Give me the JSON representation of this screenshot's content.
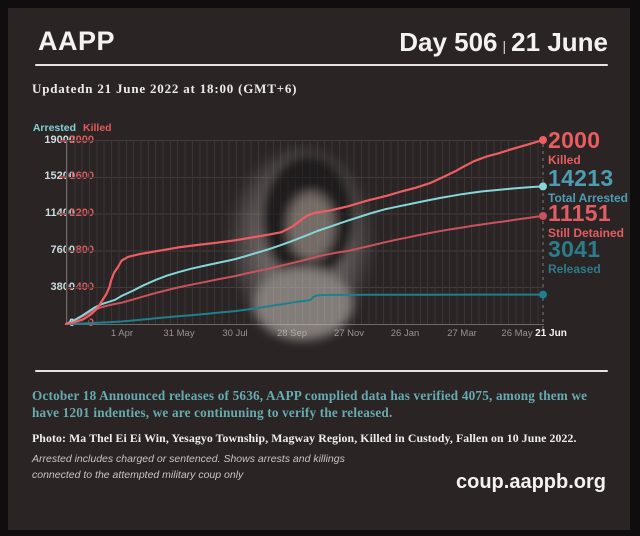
{
  "header": {
    "brand": "AAPP",
    "day_label": "Day 506",
    "divider": "|",
    "date_label": "21 June"
  },
  "updated_line": "Updatedn 21 June 2022 at 18:00 (GMT+6)",
  "chart_data": {
    "type": "line",
    "grid": true,
    "y_left": {
      "title": "Arrested",
      "min": 0,
      "max": 19000,
      "tick_labels": [
        "19000",
        "15200",
        "11400",
        "7600",
        "3800",
        "0"
      ]
    },
    "y_right": {
      "title": "Killed",
      "min": 0,
      "max": 2000,
      "tick_labels": [
        "2000",
        "1600",
        "1200",
        "800",
        "400",
        "0"
      ]
    },
    "x_range_days": [
      0,
      505
    ],
    "x_ticks": [
      {
        "label": "1 Apr",
        "day": 59
      },
      {
        "label": "31 May",
        "day": 119
      },
      {
        "label": "30 Jul",
        "day": 179
      },
      {
        "label": "28 Sep",
        "day": 239
      },
      {
        "label": "27 Nov",
        "day": 299
      },
      {
        "label": "26 Jan",
        "day": 359
      },
      {
        "label": "27 Mar",
        "day": 419
      },
      {
        "label": "26 May",
        "day": 479
      },
      {
        "label": "21 Jun",
        "day": 505
      }
    ],
    "series": [
      {
        "name": "Released",
        "axis": "right_scale_no",
        "scale_max": 19000,
        "color": "#1f7f8d",
        "width": 2,
        "points": [
          [
            0,
            0
          ],
          [
            15,
            40
          ],
          [
            30,
            110
          ],
          [
            45,
            190
          ],
          [
            59,
            260
          ],
          [
            75,
            400
          ],
          [
            90,
            550
          ],
          [
            105,
            680
          ],
          [
            119,
            790
          ],
          [
            134,
            920
          ],
          [
            150,
            1060
          ],
          [
            164,
            1200
          ],
          [
            179,
            1330
          ],
          [
            192,
            1500
          ],
          [
            205,
            1680
          ],
          [
            218,
            1880
          ],
          [
            230,
            2060
          ],
          [
            239,
            2200
          ],
          [
            248,
            2330
          ],
          [
            255,
            2420
          ],
          [
            259,
            2480
          ],
          [
            262,
            2820
          ],
          [
            266,
            2950
          ],
          [
            272,
            2990
          ],
          [
            285,
            3000
          ],
          [
            300,
            3005
          ],
          [
            320,
            3012
          ],
          [
            350,
            3018
          ],
          [
            390,
            3025
          ],
          [
            430,
            3032
          ],
          [
            470,
            3037
          ],
          [
            505,
            3041
          ]
        ]
      },
      {
        "name": "Still Detained",
        "axis": "left",
        "scale_max": 19000,
        "color": "#c9525e",
        "width": 2,
        "points": [
          [
            0,
            0
          ],
          [
            8,
            320
          ],
          [
            16,
            700
          ],
          [
            24,
            1150
          ],
          [
            31,
            1500
          ],
          [
            38,
            1750
          ],
          [
            46,
            1950
          ],
          [
            52,
            2080
          ],
          [
            59,
            2200
          ],
          [
            70,
            2500
          ],
          [
            82,
            2850
          ],
          [
            95,
            3200
          ],
          [
            107,
            3500
          ],
          [
            119,
            3780
          ],
          [
            132,
            4050
          ],
          [
            146,
            4320
          ],
          [
            160,
            4600
          ],
          [
            172,
            4820
          ],
          [
            179,
            4950
          ],
          [
            190,
            5200
          ],
          [
            202,
            5450
          ],
          [
            214,
            5700
          ],
          [
            226,
            5980
          ],
          [
            239,
            6280
          ],
          [
            250,
            6550
          ],
          [
            260,
            6800
          ],
          [
            270,
            7050
          ],
          [
            280,
            7250
          ],
          [
            290,
            7420
          ],
          [
            299,
            7550
          ],
          [
            312,
            7850
          ],
          [
            325,
            8150
          ],
          [
            338,
            8450
          ],
          [
            350,
            8700
          ],
          [
            360,
            8900
          ],
          [
            372,
            9150
          ],
          [
            385,
            9400
          ],
          [
            398,
            9620
          ],
          [
            410,
            9820
          ],
          [
            419,
            9950
          ],
          [
            430,
            10130
          ],
          [
            442,
            10300
          ],
          [
            454,
            10470
          ],
          [
            466,
            10630
          ],
          [
            478,
            10800
          ],
          [
            490,
            10960
          ],
          [
            498,
            11070
          ],
          [
            505,
            11151
          ]
        ]
      },
      {
        "name": "Total Arrested",
        "axis": "left",
        "scale_max": 19000,
        "color": "#86d6d8",
        "width": 2,
        "points": [
          [
            0,
            0
          ],
          [
            8,
            350
          ],
          [
            16,
            800
          ],
          [
            24,
            1300
          ],
          [
            31,
            1750
          ],
          [
            38,
            2050
          ],
          [
            46,
            2300
          ],
          [
            52,
            2500
          ],
          [
            59,
            2900
          ],
          [
            70,
            3400
          ],
          [
            82,
            4000
          ],
          [
            95,
            4550
          ],
          [
            107,
            5000
          ],
          [
            119,
            5350
          ],
          [
            132,
            5700
          ],
          [
            146,
            6000
          ],
          [
            160,
            6300
          ],
          [
            172,
            6550
          ],
          [
            179,
            6700
          ],
          [
            190,
            7000
          ],
          [
            202,
            7350
          ],
          [
            214,
            7700
          ],
          [
            226,
            8100
          ],
          [
            239,
            8550
          ],
          [
            248,
            8900
          ],
          [
            256,
            9200
          ],
          [
            266,
            9600
          ],
          [
            278,
            10000
          ],
          [
            290,
            10400
          ],
          [
            299,
            10700
          ],
          [
            312,
            11100
          ],
          [
            325,
            11500
          ],
          [
            338,
            11850
          ],
          [
            350,
            12100
          ],
          [
            360,
            12300
          ],
          [
            372,
            12550
          ],
          [
            385,
            12800
          ],
          [
            398,
            13050
          ],
          [
            410,
            13250
          ],
          [
            419,
            13400
          ],
          [
            430,
            13550
          ],
          [
            442,
            13700
          ],
          [
            454,
            13820
          ],
          [
            466,
            13930
          ],
          [
            478,
            14030
          ],
          [
            490,
            14120
          ],
          [
            498,
            14170
          ],
          [
            505,
            14213
          ]
        ]
      },
      {
        "name": "Killed",
        "axis": "right",
        "scale_max": 2000,
        "color": "#ee5d62",
        "width": 2.2,
        "points": [
          [
            0,
            0
          ],
          [
            8,
            15
          ],
          [
            18,
            50
          ],
          [
            27,
            110
          ],
          [
            33,
            170
          ],
          [
            38,
            250
          ],
          [
            43,
            330
          ],
          [
            46,
            400
          ],
          [
            48,
            480
          ],
          [
            51,
            560
          ],
          [
            55,
            620
          ],
          [
            59,
            690
          ],
          [
            66,
            730
          ],
          [
            78,
            760
          ],
          [
            95,
            790
          ],
          [
            119,
            833
          ],
          [
            140,
            860
          ],
          [
            160,
            884
          ],
          [
            179,
            910
          ],
          [
            200,
            946
          ],
          [
            215,
            972
          ],
          [
            228,
            998
          ],
          [
            240,
            1060
          ],
          [
            250,
            1140
          ],
          [
            256,
            1180
          ],
          [
            264,
            1210
          ],
          [
            280,
            1235
          ],
          [
            299,
            1280
          ],
          [
            320,
            1345
          ],
          [
            340,
            1395
          ],
          [
            355,
            1440
          ],
          [
            370,
            1480
          ],
          [
            385,
            1530
          ],
          [
            400,
            1600
          ],
          [
            412,
            1660
          ],
          [
            419,
            1700
          ],
          [
            432,
            1770
          ],
          [
            445,
            1820
          ],
          [
            458,
            1855
          ],
          [
            470,
            1895
          ],
          [
            480,
            1925
          ],
          [
            492,
            1960
          ],
          [
            505,
            2000
          ]
        ]
      }
    ],
    "callouts": [
      {
        "value": "2000",
        "label": "Killed",
        "color": "#e85d60"
      },
      {
        "value": "14213",
        "label": "Total Arrested",
        "color": "#4d9cb1"
      },
      {
        "value": "11151",
        "label": "Still Detained",
        "color": "#e25c64"
      },
      {
        "value": "3041",
        "label": "Released",
        "color": "#2c7c8a"
      }
    ]
  },
  "notes": {
    "october": "October 18 Announced releases of 5636, AAPP complied data has verified 4075, among them we have 1201 indenties, we are continuning to verify the released.",
    "photo_caption": "Photo:  Ma Thel Ei Ei Win, Yesagyo Township, Magway Region, Killed in Custody, Fallen on 10 June 2022.",
    "disclaimer_line1": "Arrested includes charged or sentenced. Shows arrests and killings",
    "disclaimer_line2": "connected to the attempted military coup only",
    "website": "coup.aappb.org"
  }
}
